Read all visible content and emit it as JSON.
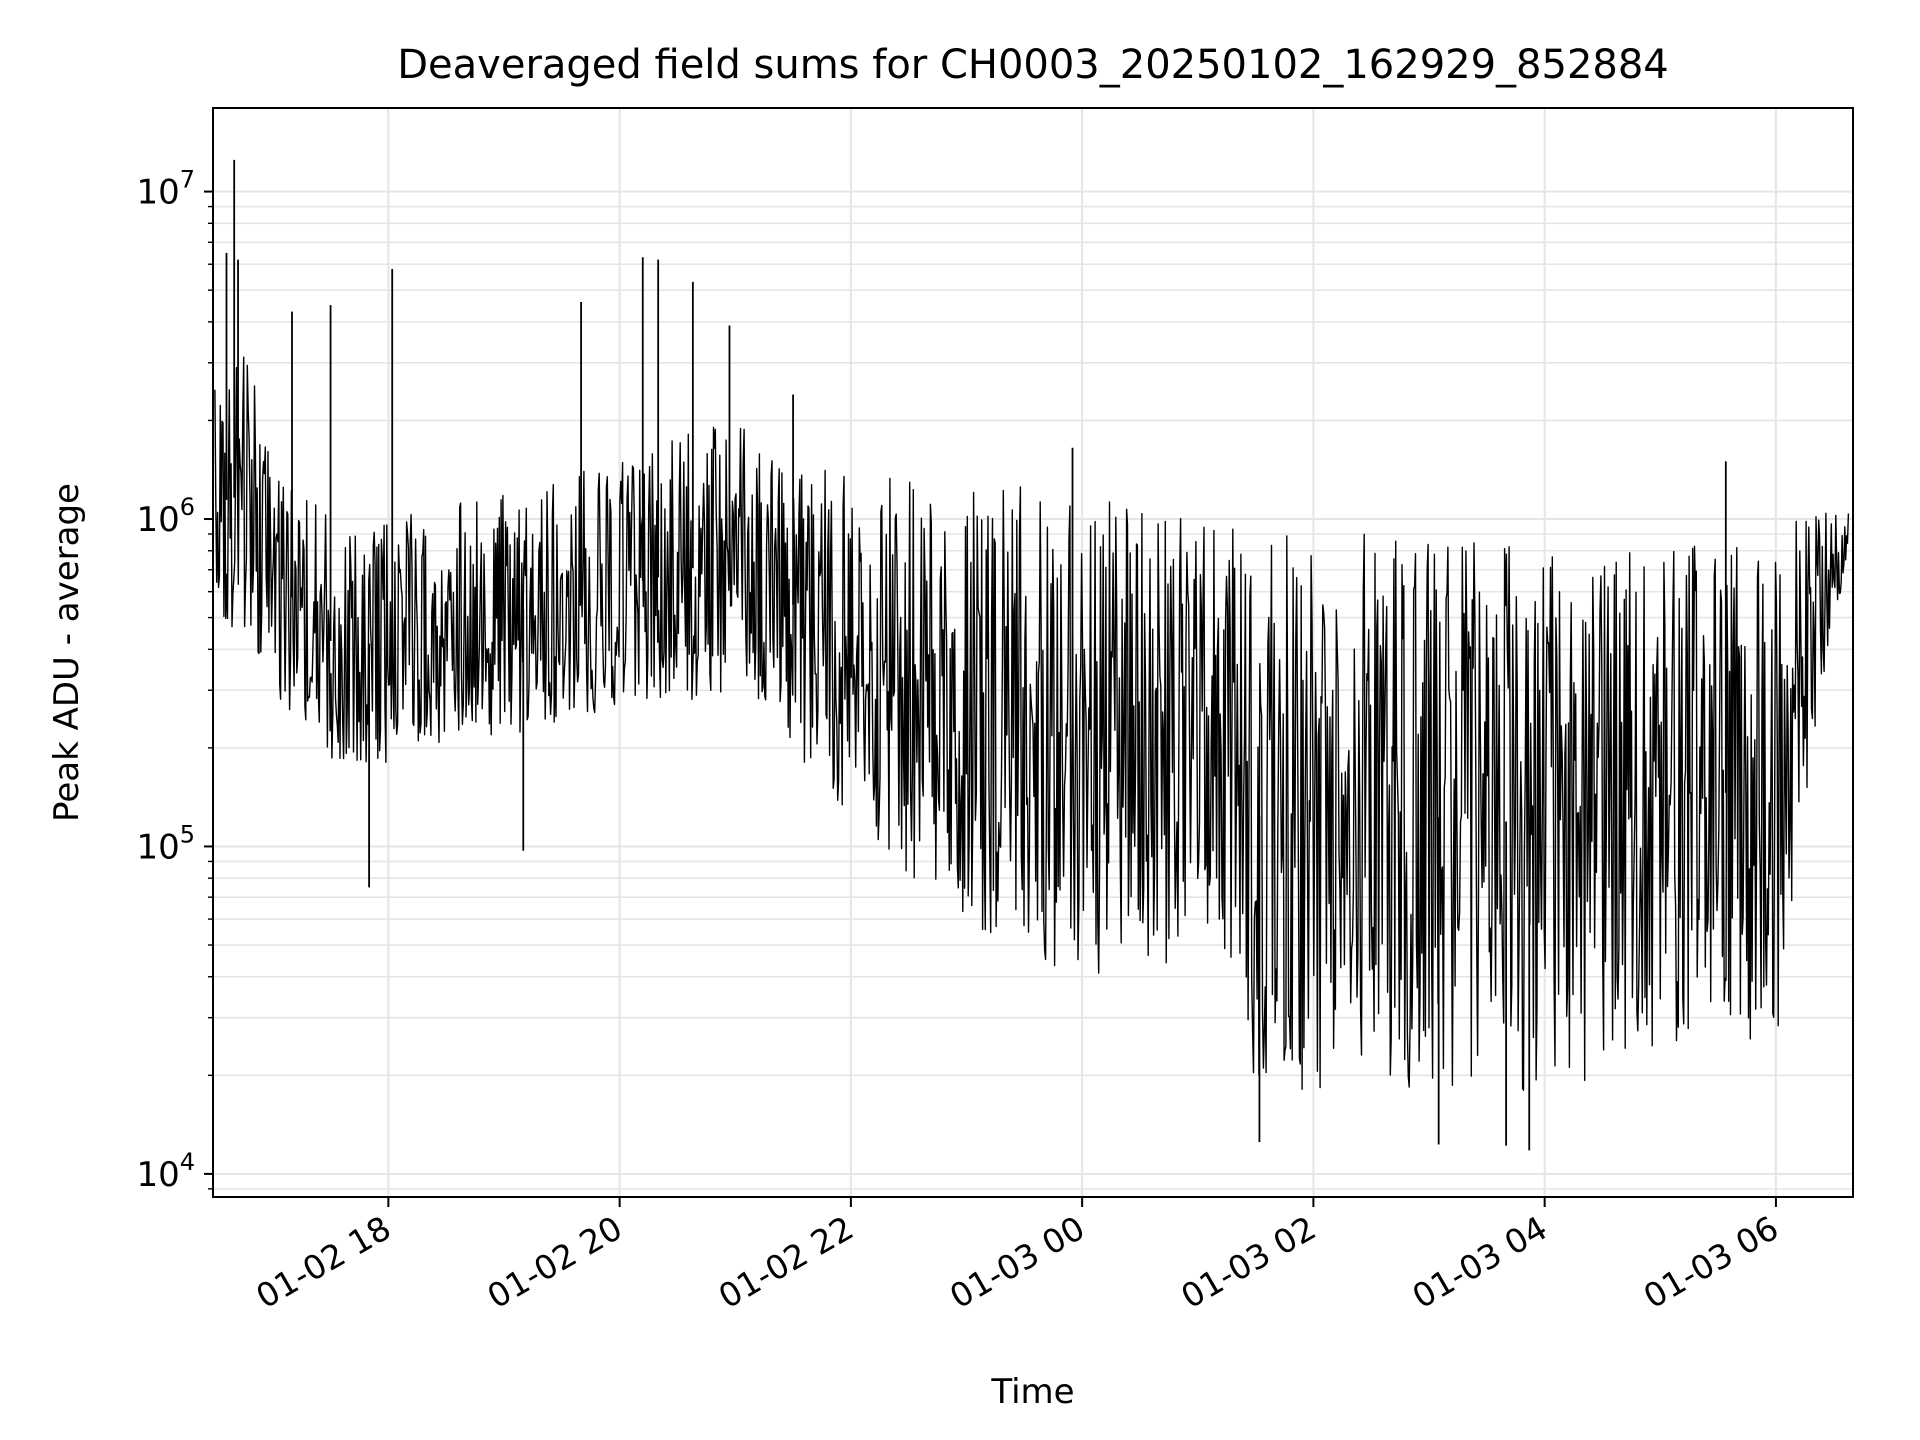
{
  "chart_data": {
    "type": "line",
    "title": "Deaveraged field sums for CH0003_20250102_162929_852884",
    "xlabel": "Time",
    "ylabel": "Peak ADU - average",
    "yscale": "log",
    "grid": true,
    "ylim": [
      8500,
      18000000
    ],
    "xlim": [
      "2025-01-02 16:29",
      "2025-01-03 06:40"
    ],
    "x_ticks": [
      {
        "time": "2025-01-02 18:00",
        "label": "01-02 18"
      },
      {
        "time": "2025-01-02 20:00",
        "label": "01-02 20"
      },
      {
        "time": "2025-01-02 22:00",
        "label": "01-02 22"
      },
      {
        "time": "2025-01-03 00:00",
        "label": "01-03 00"
      },
      {
        "time": "2025-01-03 02:00",
        "label": "01-03 02"
      },
      {
        "time": "2025-01-03 04:00",
        "label": "01-03 04"
      },
      {
        "time": "2025-01-03 06:00",
        "label": "01-03 06"
      }
    ],
    "y_ticks": [
      {
        "value": 10000,
        "base": "10",
        "exp": "4"
      },
      {
        "value": 100000,
        "base": "10",
        "exp": "5"
      },
      {
        "value": 1000000,
        "base": "10",
        "exp": "6"
      },
      {
        "value": 10000000,
        "base": "10",
        "exp": "7"
      }
    ],
    "line_color": "#000000",
    "grid_color": "#e5e5e5",
    "envelope": {
      "time": [
        "2025-01-02 16:30",
        "2025-01-02 16:45",
        "2025-01-02 17:00",
        "2025-01-02 17:30",
        "2025-01-02 18:00",
        "2025-01-02 18:30",
        "2025-01-02 19:00",
        "2025-01-02 19:30",
        "2025-01-02 20:00",
        "2025-01-02 20:30",
        "2025-01-02 21:00",
        "2025-01-02 21:30",
        "2025-01-02 22:00",
        "2025-01-02 22:30",
        "2025-01-02 23:00",
        "2025-01-02 23:30",
        "2025-01-03 00:00",
        "2025-01-03 00:30",
        "2025-01-03 01:00",
        "2025-01-03 01:30",
        "2025-01-03 02:00",
        "2025-01-03 02:30",
        "2025-01-03 03:00",
        "2025-01-03 03:30",
        "2025-01-03 04:00",
        "2025-01-03 04:30",
        "2025-01-03 05:00",
        "2025-01-03 05:30",
        "2025-01-03 06:00",
        "2025-01-03 06:10",
        "2025-01-03 06:25",
        "2025-01-03 06:38"
      ],
      "high": [
        2500000,
        3500000,
        1500000,
        1000000,
        1000000,
        1100000,
        1200000,
        1400000,
        1500000,
        1800000,
        2000000,
        1500000,
        1400000,
        1350000,
        1300000,
        1300000,
        1250000,
        1100000,
        1000000,
        900000,
        900000,
        900000,
        900000,
        880000,
        850000,
        850000,
        850000,
        850000,
        850000,
        1000000,
        1100000,
        1150000
      ],
      "low": [
        500000,
        400000,
        300000,
        180000,
        170000,
        200000,
        220000,
        230000,
        260000,
        260000,
        300000,
        200000,
        120000,
        80000,
        60000,
        45000,
        40000,
        40000,
        35000,
        17000,
        18000,
        18000,
        17000,
        16000,
        17000,
        20000,
        22000,
        25000,
        25000,
        70000,
        300000,
        600000
      ]
    },
    "spikes": [
      {
        "time": "2025-01-02 16:40",
        "value": 12500000
      },
      {
        "time": "2025-01-02 16:36",
        "value": 6500000
      },
      {
        "time": "2025-01-02 16:42",
        "value": 6200000
      },
      {
        "time": "2025-01-02 17:10",
        "value": 4300000
      },
      {
        "time": "2025-01-02 17:30",
        "value": 4500000
      },
      {
        "time": "2025-01-02 18:02",
        "value": 5800000
      },
      {
        "time": "2025-01-02 19:40",
        "value": 4600000
      },
      {
        "time": "2025-01-02 20:12",
        "value": 6300000
      },
      {
        "time": "2025-01-02 20:20",
        "value": 6200000
      },
      {
        "time": "2025-01-02 20:38",
        "value": 5300000
      },
      {
        "time": "2025-01-02 20:57",
        "value": 3900000
      },
      {
        "time": "2025-01-02 21:30",
        "value": 2400000
      },
      {
        "time": "2025-01-02 23:55",
        "value": 1650000
      },
      {
        "time": "2025-01-03 05:34",
        "value": 1500000
      },
      {
        "time": "2025-01-02 17:50",
        "value": 75000
      },
      {
        "time": "2025-01-02 19:10",
        "value": 97000
      },
      {
        "time": "2025-01-03 01:32",
        "value": 12500
      },
      {
        "time": "2025-01-03 03:40",
        "value": 12200
      },
      {
        "time": "2025-01-03 03:52",
        "value": 11800
      },
      {
        "time": "2025-01-03 03:05",
        "value": 12300
      }
    ]
  }
}
